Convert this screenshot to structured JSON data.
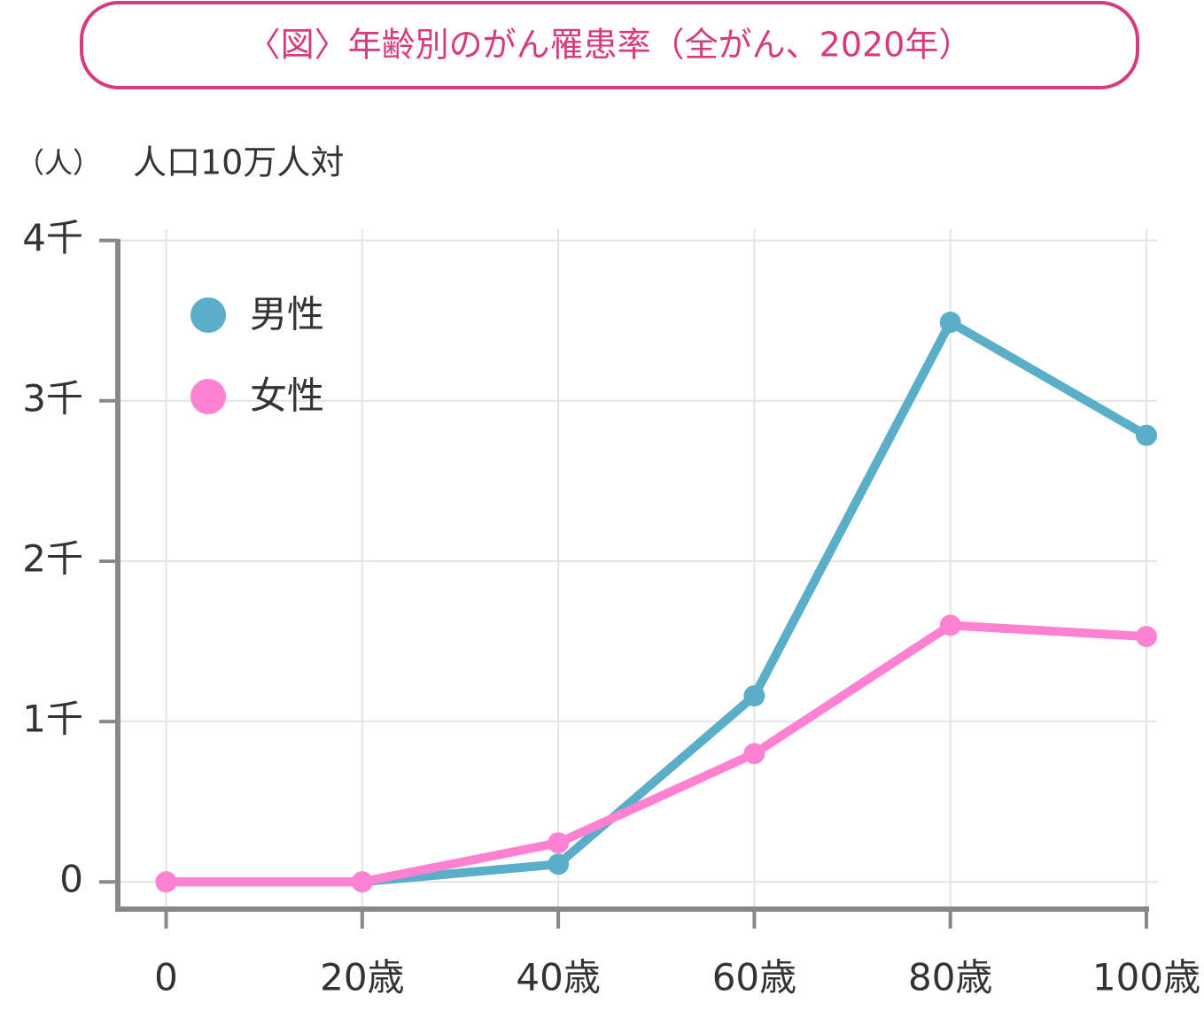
{
  "chart_data": {
    "type": "line",
    "title": "〈図〉年齢別のがん罹患率（全がん、2020年）",
    "y_unit": "（人）",
    "y_label": "人口10万人対",
    "x": [
      0,
      20,
      40,
      60,
      80,
      100
    ],
    "series": [
      {
        "name": "男性",
        "color": "#5aaec8",
        "values": [
          0,
          0,
          110,
          1160,
          3490,
          2785
        ]
      },
      {
        "name": "女性",
        "color": "#ff82d2",
        "values": [
          0,
          0,
          243,
          800,
          1600,
          1530
        ]
      }
    ],
    "xlim": [
      -5.2,
      100
    ],
    "xticks": [
      0,
      {
        "value": 20,
        "label": "20歳"
      },
      {
        "value": 40,
        "label": "40歳"
      },
      {
        "value": 60,
        "label": "60歳"
      },
      {
        "value": 80,
        "label": "80歳"
      },
      {
        "value": 100,
        "label": "100歳"
      }
    ],
    "ylim": [
      -170,
      4070
    ],
    "yticks": [
      0,
      {
        "value": 1000,
        "label": "1千"
      },
      {
        "value": 2000,
        "label": "2千"
      },
      {
        "value": 3000,
        "label": "3千"
      },
      {
        "value": 4000,
        "label": "4千"
      }
    ],
    "grid": true,
    "legend": "top-left"
  }
}
